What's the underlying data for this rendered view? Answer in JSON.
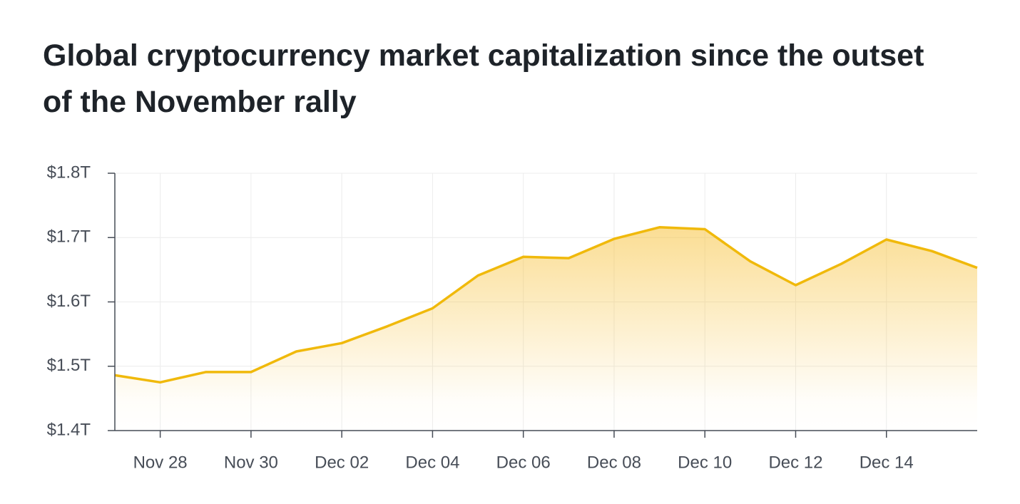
{
  "chart_data": {
    "type": "area",
    "title": "Global cryptocurrency market capitalization since the outset of the November rally",
    "x": [
      "Nov 27",
      "Nov 28",
      "Nov 29",
      "Nov 30",
      "Dec 01",
      "Dec 02",
      "Dec 03",
      "Dec 04",
      "Dec 05",
      "Dec 06",
      "Dec 07",
      "Dec 08",
      "Dec 09",
      "Dec 10",
      "Dec 11",
      "Dec 12",
      "Dec 13",
      "Dec 14",
      "Dec 15",
      "Dec 16"
    ],
    "values": [
      1.486,
      1.475,
      1.491,
      1.491,
      1.523,
      1.536,
      1.562,
      1.59,
      1.641,
      1.67,
      1.668,
      1.698,
      1.716,
      1.713,
      1.663,
      1.626,
      1.659,
      1.697,
      1.679,
      1.653
    ],
    "color": "#f0b90b",
    "xlim": [
      "Nov 27",
      "Dec 16"
    ],
    "xticks": [
      "Nov 28",
      "Nov 30",
      "Dec 02",
      "Dec 04",
      "Dec 06",
      "Dec 08",
      "Dec 10",
      "Dec 12",
      "Dec 14"
    ],
    "ylim": [
      1.4,
      1.8
    ],
    "yticks": [
      {
        "value": 1.4,
        "label": "$1.4T"
      },
      {
        "value": 1.5,
        "label": "$1.5T"
      },
      {
        "value": 1.6,
        "label": "$1.6T"
      },
      {
        "value": 1.7,
        "label": "$1.7T"
      },
      {
        "value": 1.8,
        "label": "$1.8T"
      }
    ],
    "grid": true
  }
}
